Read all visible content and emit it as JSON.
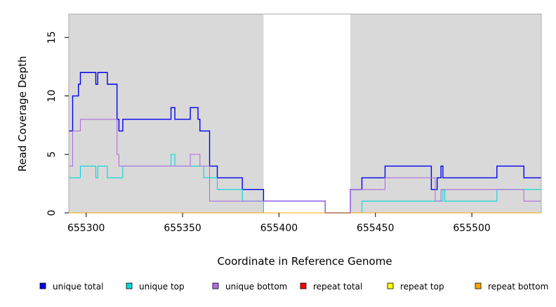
{
  "chart_data": {
    "type": "line",
    "title": "",
    "xlabel": "Coordinate in Reference Genome",
    "ylabel": "Read Coverage Depth",
    "xlim": [
      655291,
      655536
    ],
    "ylim": [
      0,
      17
    ],
    "x_ticks": [
      655300,
      655350,
      655400,
      655450,
      655500
    ],
    "x_tick_labels": [
      "655300",
      "655350",
      "655400",
      "655450",
      "655500"
    ],
    "y_ticks": [
      0,
      5,
      10,
      15
    ],
    "y_tick_labels": [
      "0",
      "5",
      "10",
      "15"
    ],
    "grid": false,
    "background_color": "#d9d9d9",
    "highlight_regions": [
      {
        "x_start": 655392,
        "x_end": 655437,
        "color": "#ffffff"
      }
    ],
    "legend_position": "bottom",
    "series": [
      {
        "name": "unique total",
        "color": "#0000ee",
        "steps": [
          [
            655291,
            7
          ],
          [
            655293,
            10
          ],
          [
            655296,
            11
          ],
          [
            655297,
            12
          ],
          [
            655305,
            11
          ],
          [
            655306,
            12
          ],
          [
            655311,
            11
          ],
          [
            655316,
            8
          ],
          [
            655317,
            7
          ],
          [
            655319,
            8
          ],
          [
            655344,
            9
          ],
          [
            655346,
            8
          ],
          [
            655354,
            9
          ],
          [
            655358,
            8
          ],
          [
            655359,
            7
          ],
          [
            655364,
            4
          ],
          [
            655368,
            3
          ],
          [
            655381,
            2
          ],
          [
            655392,
            1
          ],
          [
            655424,
            0
          ],
          [
            655437,
            2
          ],
          [
            655443,
            3
          ],
          [
            655455,
            4
          ],
          [
            655479,
            2
          ],
          [
            655482,
            3
          ],
          [
            655484,
            4
          ],
          [
            655485,
            3
          ],
          [
            655513,
            4
          ],
          [
            655527,
            3
          ],
          [
            655536,
            3
          ]
        ]
      },
      {
        "name": "unique top",
        "color": "#00d8d8",
        "steps": [
          [
            655291,
            3
          ],
          [
            655297,
            4
          ],
          [
            655305,
            3
          ],
          [
            655306,
            4
          ],
          [
            655311,
            3
          ],
          [
            655319,
            4
          ],
          [
            655344,
            5
          ],
          [
            655346,
            4
          ],
          [
            655361,
            3
          ],
          [
            655368,
            2
          ],
          [
            655381,
            1
          ],
          [
            655392,
            0
          ],
          [
            655443,
            1
          ],
          [
            655485,
            2
          ],
          [
            655486,
            1
          ],
          [
            655513,
            2
          ],
          [
            655536,
            2
          ]
        ]
      },
      {
        "name": "unique bottom",
        "color": "#b06ee0",
        "steps": [
          [
            655291,
            4
          ],
          [
            655293,
            7
          ],
          [
            655297,
            8
          ],
          [
            655316,
            5
          ],
          [
            655317,
            4
          ],
          [
            655354,
            5
          ],
          [
            655359,
            4
          ],
          [
            655364,
            1
          ],
          [
            655392,
            1
          ],
          [
            655424,
            0
          ],
          [
            655437,
            2
          ],
          [
            655455,
            3
          ],
          [
            655481,
            1
          ],
          [
            655484,
            2
          ],
          [
            655527,
            1
          ],
          [
            655536,
            1
          ]
        ]
      },
      {
        "name": "repeat total",
        "color": "#ff0000",
        "steps": [
          [
            655291,
            0
          ],
          [
            655536,
            0
          ]
        ]
      },
      {
        "name": "repeat top",
        "color": "#ffff00",
        "steps": [
          [
            655291,
            0
          ],
          [
            655536,
            0
          ]
        ]
      },
      {
        "name": "repeat bottom",
        "color": "#ffa500",
        "steps": [
          [
            655291,
            0
          ],
          [
            655536,
            0
          ]
        ]
      }
    ]
  }
}
